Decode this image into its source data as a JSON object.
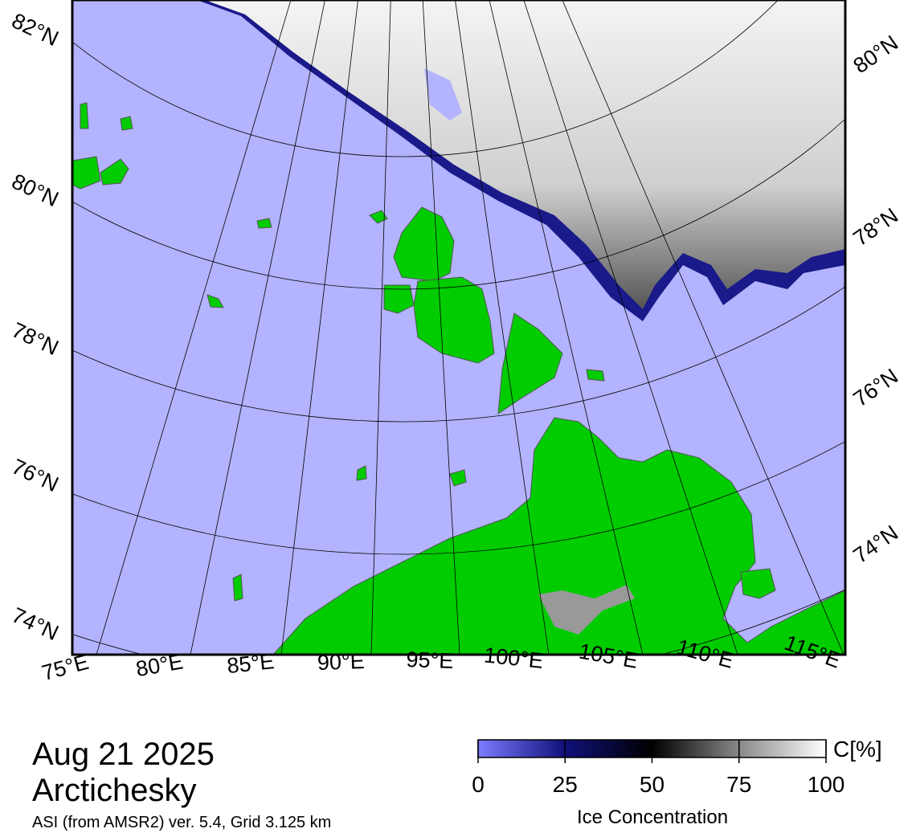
{
  "header": {
    "date": "Aug 21 2025",
    "region": "Arctichesky",
    "source": "ASI (from AMSR2) ver. 5.4,  Grid 3.125 km"
  },
  "map": {
    "lat_labels_left": [
      "82°N",
      "80°N",
      "78°N",
      "76°N",
      "74°N"
    ],
    "lat_labels_right": [
      "80°N",
      "78°N",
      "76°N",
      "74°N"
    ],
    "lon_labels": [
      "75°E",
      "80°E",
      "85°E",
      "90°E",
      "95°E",
      "100°E",
      "105°E",
      "110°E",
      "115°E"
    ]
  },
  "colorbar": {
    "unit": "C[%]",
    "label": "Ice Concentration",
    "range": [
      0,
      100
    ],
    "ticks": [
      0,
      25,
      50,
      75,
      100
    ]
  }
}
